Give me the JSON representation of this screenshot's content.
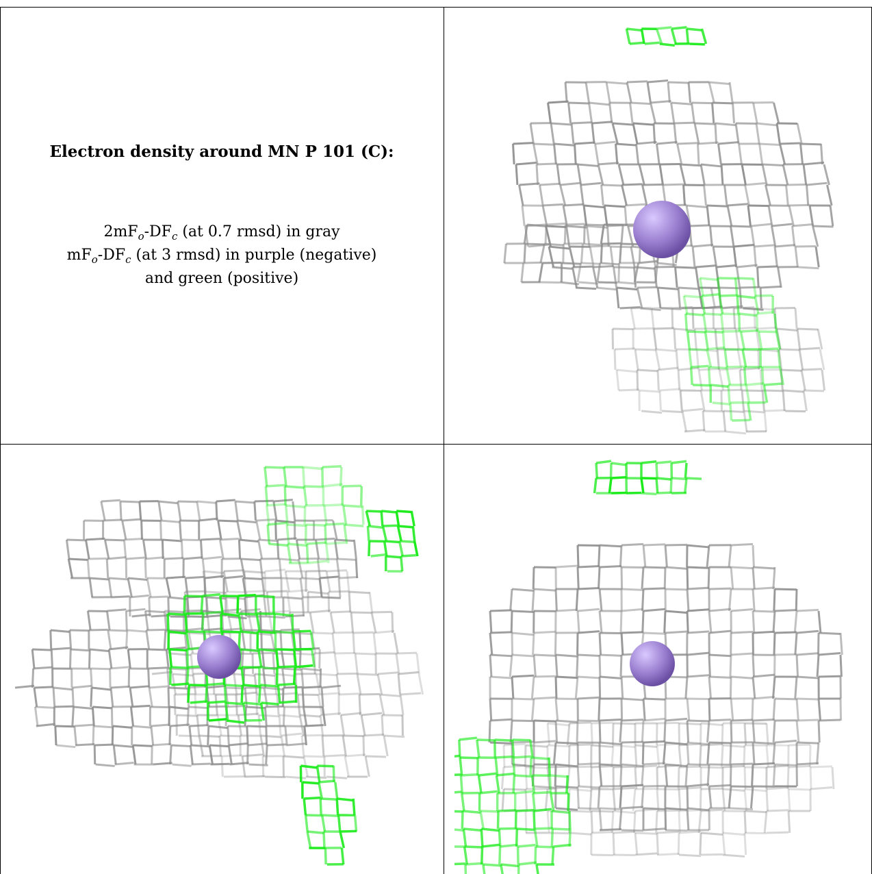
{
  "caption": {
    "title": "Electron density around MN P 101 (C):",
    "line1": {
      "lead": "2mF",
      "o": "o",
      "mid": "-DF",
      "c": "c",
      "tail": " (at 0.7 rmsd) in gray"
    },
    "line2": {
      "lead": "mF",
      "o": "o",
      "mid": "-DF",
      "c": "c",
      "tail": " (at 3 rmsd) in purple (negative)"
    },
    "line3": "and green (positive)"
  },
  "colors": {
    "gray_mesh": "#8c8c8c",
    "green_mesh": "#1aeb1a",
    "atom": "#9b7fd0",
    "border": "#000000"
  },
  "panels": [
    {
      "id": "top-right",
      "atom": "MN",
      "view": "view-1"
    },
    {
      "id": "bottom-left",
      "atom": "MN",
      "view": "view-2"
    },
    {
      "id": "bottom-right",
      "atom": "MN",
      "view": "view-3"
    }
  ]
}
